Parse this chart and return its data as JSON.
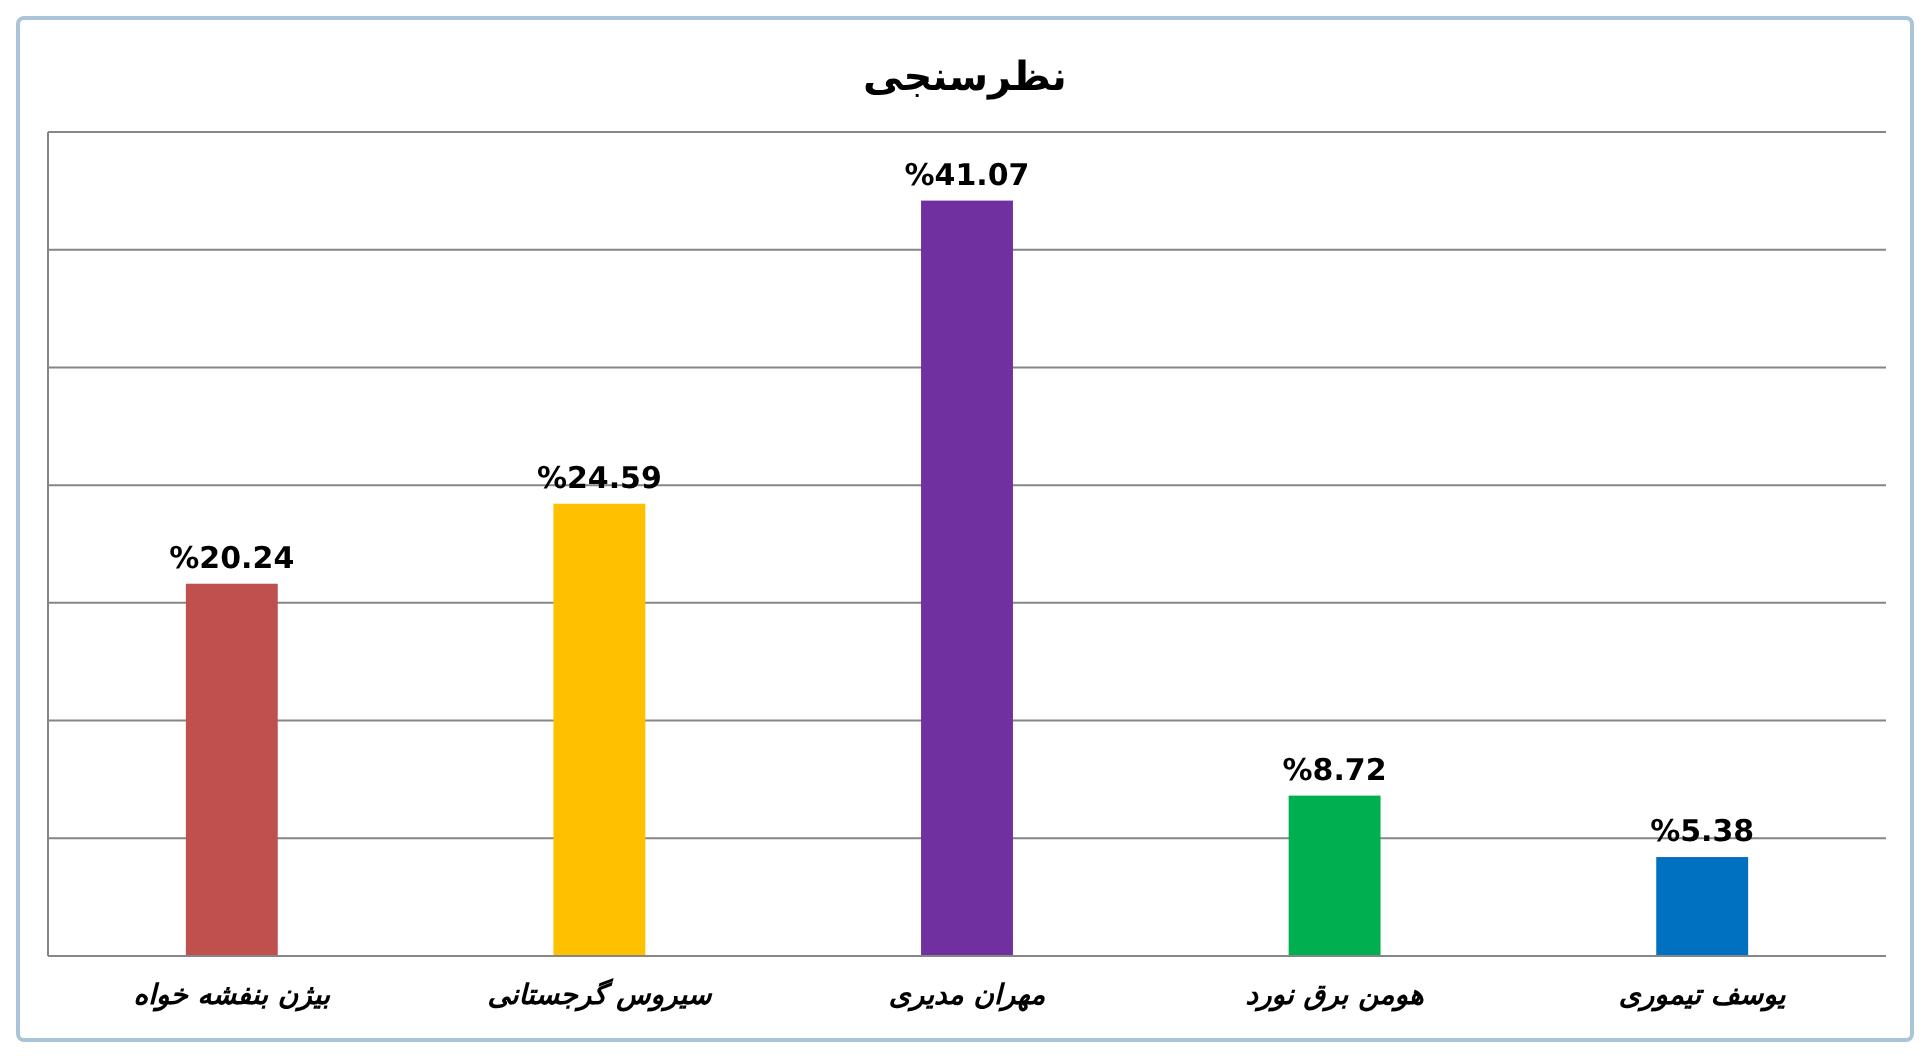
{
  "chart_data": {
    "type": "bar",
    "title": "نظرسنجی",
    "categories": [
      "بیژن بنفشه خواه",
      "سیروس گرجستانی",
      "مهران مدیری",
      "هومن برق نورد",
      "یوسف تیموری"
    ],
    "values": [
      20.24,
      24.59,
      41.07,
      8.72,
      5.38
    ],
    "colors": [
      "#c0504d",
      "#ffc000",
      "#7030a0",
      "#00b050",
      "#0070c0"
    ],
    "value_labels": [
      "%20.24",
      "%24.59",
      "%41.07",
      "%8.72",
      "%5.38"
    ],
    "ylim": [
      0,
      44.8
    ],
    "yticks": [
      {
        "value": 0,
        "label": null
      },
      {
        "value": 6.4,
        "label": null
      },
      {
        "value": 12.8,
        "label": null
      },
      {
        "value": 19.2,
        "label": null
      },
      {
        "value": 25.6,
        "label": null
      },
      {
        "value": 32,
        "label": null
      },
      {
        "value": 38.4,
        "label": null
      },
      {
        "value": 44.8,
        "label": null
      }
    ],
    "grid": "y",
    "tick_labels": "x"
  }
}
